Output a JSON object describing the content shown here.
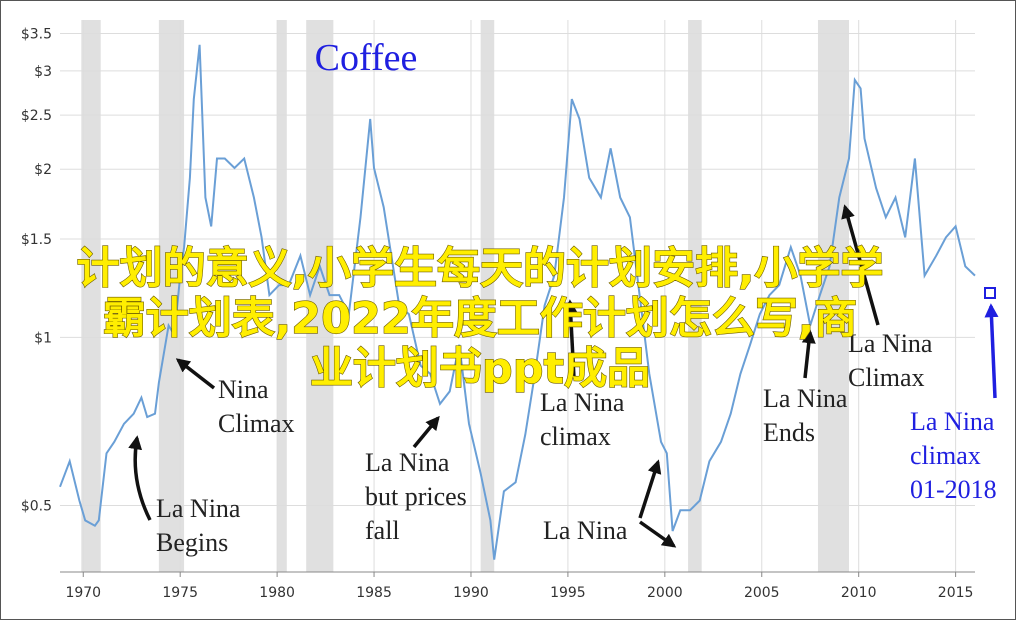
{
  "chart_data": {
    "type": "line",
    "title": "Coffee",
    "title_color": "#1f1fe0",
    "log_scale_y": true,
    "grid": true,
    "xlim": [
      1968.8,
      2016.0
    ],
    "xticks": [
      1970,
      1975,
      1980,
      1985,
      1990,
      1995,
      2000,
      2005,
      2010,
      2015
    ],
    "ylim": [
      0.38,
      3.7
    ],
    "yticks": [
      {
        "value": 0.5,
        "label": "$0.5"
      },
      {
        "value": 1,
        "label": "$1"
      },
      {
        "value": 1.5,
        "label": "$1.5"
      },
      {
        "value": 2,
        "label": "$2"
      },
      {
        "value": 2.5,
        "label": "$2.5"
      },
      {
        "value": 3,
        "label": "$3"
      },
      {
        "value": 3.5,
        "label": "$3.5"
      }
    ],
    "shaded_ranges": [
      [
        1969.9,
        1970.9
      ],
      [
        1973.9,
        1975.2
      ],
      [
        1980.0,
        1980.5
      ],
      [
        1981.5,
        1982.9
      ],
      [
        1990.5,
        1991.2
      ],
      [
        2001.2,
        2001.9
      ],
      [
        2007.9,
        2009.5
      ]
    ],
    "shade_color": "#e0e0e0",
    "x": [
      1968.8,
      1969.3,
      1969.8,
      1970.1,
      1970.6,
      1970.8,
      1971.2,
      1971.6,
      1972.1,
      1972.6,
      1973.0,
      1973.3,
      1973.7,
      1973.9,
      1974.4,
      1974.7,
      1975.0,
      1975.2,
      1975.5,
      1975.7,
      1976.0,
      1976.1,
      1976.3,
      1976.6,
      1976.9,
      1977.3,
      1977.8,
      1978.3,
      1978.8,
      1979.2,
      1979.6,
      1980.1,
      1980.6,
      1981.2,
      1981.7,
      1982.2,
      1982.7,
      1983.2,
      1983.7,
      1984.3,
      1984.8,
      1985.0,
      1985.5,
      1986.3,
      1986.8,
      1987.4,
      1987.9,
      1988.4,
      1988.9,
      1989.4,
      1989.9,
      1990.5,
      1991.0,
      1991.2,
      1991.7,
      1992.3,
      1992.8,
      1993.3,
      1993.8,
      1994.3,
      1994.8,
      1995.2,
      1995.6,
      1996.1,
      1996.7,
      1997.2,
      1997.7,
      1998.2,
      1998.7,
      1999.2,
      1999.8,
      2000.1,
      2000.4,
      2000.8,
      2001.3,
      2001.8,
      2002.3,
      2002.9,
      2003.4,
      2003.9,
      2004.4,
      2004.9,
      2005.4,
      2005.9,
      2006.5,
      2007.0,
      2007.5,
      2008.0,
      2008.5,
      2009.0,
      2009.5,
      2009.8,
      2010.1,
      2010.3,
      2010.9,
      2011.4,
      2011.9,
      2012.4,
      2012.9,
      2013.4,
      2014.0,
      2014.5,
      2015.0,
      2015.5,
      2016.0
    ],
    "series": [
      {
        "color": "#6a9fd6",
        "values": [
          0.54,
          0.6,
          0.51,
          0.47,
          0.46,
          0.47,
          0.62,
          0.65,
          0.7,
          0.73,
          0.78,
          0.72,
          0.73,
          0.83,
          1.05,
          1.01,
          1.29,
          1.45,
          1.93,
          2.67,
          3.34,
          2.72,
          1.78,
          1.58,
          2.09,
          2.09,
          2.01,
          2.09,
          1.78,
          1.51,
          1.19,
          1.24,
          1.24,
          1.4,
          1.19,
          1.34,
          1.19,
          1.19,
          1.1,
          1.64,
          2.46,
          2.01,
          1.71,
          1.14,
          1.1,
          0.89,
          0.86,
          0.76,
          0.8,
          0.97,
          0.7,
          0.57,
          0.47,
          0.4,
          0.53,
          0.55,
          0.67,
          0.86,
          1.14,
          1.29,
          1.78,
          2.67,
          2.46,
          1.93,
          1.78,
          2.18,
          1.78,
          1.64,
          1.19,
          0.86,
          0.65,
          0.62,
          0.45,
          0.49,
          0.49,
          0.51,
          0.6,
          0.65,
          0.73,
          0.86,
          0.97,
          1.1,
          1.19,
          1.24,
          1.45,
          1.29,
          1.05,
          1.19,
          1.34,
          1.78,
          2.09,
          2.89,
          2.79,
          2.27,
          1.85,
          1.64,
          1.78,
          1.51,
          2.09,
          1.29,
          1.4,
          1.51,
          1.58,
          1.34,
          1.29
        ]
      }
    ],
    "annotations": [
      {
        "lines": [
          "Nina",
          "Climax"
        ],
        "color": "#222222"
      },
      {
        "lines": [
          "La Nina",
          "Begins"
        ],
        "color": "#222222"
      },
      {
        "lines": [
          "La Nina",
          "but prices",
          "fall"
        ],
        "color": "#222222"
      },
      {
        "lines": [
          "La Nina",
          "climax"
        ],
        "color": "#222222"
      },
      {
        "lines": [
          "La Nina"
        ],
        "color": "#222222"
      },
      {
        "lines": [
          "La Nina",
          "Ends"
        ],
        "color": "#222222"
      },
      {
        "lines": [
          "La Nina",
          "Climax"
        ],
        "color": "#222222"
      },
      {
        "lines": [
          "La Nina",
          "climax",
          "01-2018"
        ],
        "color": "#1f1fe0"
      }
    ],
    "overlay": {
      "lines": [
        "计划的意义,小学生每天的计划安排,小学学",
        "霸计划表,2022年度工作计划怎么写,商",
        "业计划书ppt成品"
      ],
      "color": "#ffee00"
    }
  }
}
